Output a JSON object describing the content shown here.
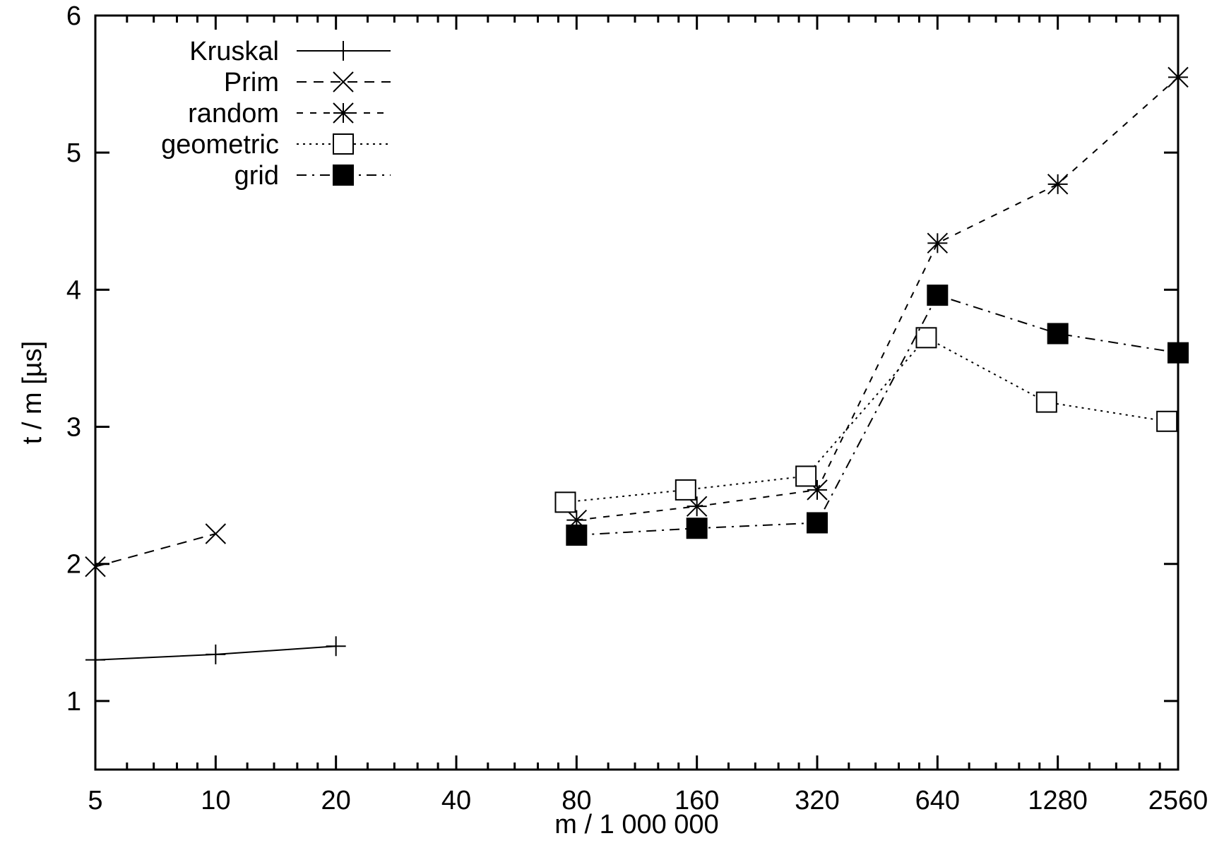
{
  "chart_data": {
    "type": "line",
    "title": "",
    "xlabel": "m / 1 000 000",
    "ylabel": "t / m [µs]",
    "x_scale": "log2",
    "xlim": [
      5,
      2560
    ],
    "ylim": [
      0.5,
      6
    ],
    "x_ticks": [
      5,
      10,
      20,
      40,
      80,
      160,
      320,
      640,
      1280,
      2560
    ],
    "y_ticks": [
      1,
      2,
      3,
      4,
      5,
      6
    ],
    "grid": false,
    "legend_position": "top-left",
    "series": [
      {
        "name": "Kruskal",
        "marker": "plus",
        "dash": "solid",
        "x": [
          5,
          10,
          20
        ],
        "y": [
          1.3,
          1.34,
          1.4
        ]
      },
      {
        "name": "Prim",
        "marker": "cross",
        "dash": "dashed",
        "x": [
          5,
          10
        ],
        "y": [
          1.98,
          2.22
        ]
      },
      {
        "name": "random",
        "marker": "star",
        "dash": "shortdash",
        "x": [
          80,
          160,
          320,
          640,
          1280,
          2560
        ],
        "y": [
          2.32,
          2.42,
          2.54,
          4.34,
          4.77,
          5.55
        ]
      },
      {
        "name": "geometric",
        "marker": "square-open",
        "dash": "dotted",
        "x": [
          75,
          150,
          300,
          600,
          1200,
          2400
        ],
        "y": [
          2.45,
          2.54,
          2.64,
          3.65,
          3.18,
          3.04
        ]
      },
      {
        "name": "grid",
        "marker": "square-filled",
        "dash": "dashdot",
        "x": [
          80,
          160,
          320,
          640,
          1280,
          2560
        ],
        "y": [
          2.21,
          2.26,
          2.3,
          3.96,
          3.68,
          3.54
        ]
      }
    ]
  }
}
